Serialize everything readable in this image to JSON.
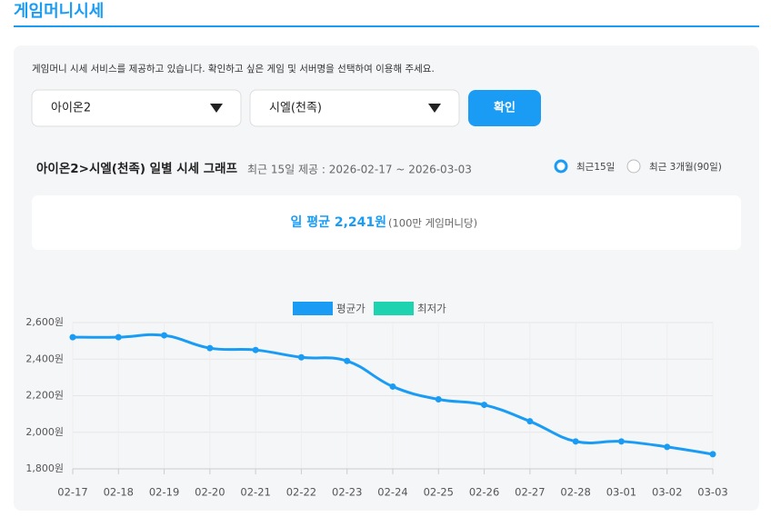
{
  "header": {
    "title": "게임머니시세"
  },
  "form": {
    "description": "게임머니 시세 서비스를 제공하고 있습니다. 확인하고 싶은 게임 및 서버명을 선택하여 이용해 주세요.",
    "game_select": "아이온2",
    "server_select": "시엘(천족)",
    "button": "확인"
  },
  "graph": {
    "title": "아이온2>시엘(천족) 일별 시세 그래프",
    "period": "최근 15일 제공 : 2026-02-17 ~ 2026-03-03",
    "options": [
      "최근15일",
      "최근 3개월(90일)"
    ]
  },
  "summary": {
    "average": "일 평균 2,241원",
    "unit": "(100만 게임머니당)"
  },
  "chart_data": {
    "type": "line",
    "categories": [
      "02-17",
      "02-18",
      "02-19",
      "02-20",
      "02-21",
      "02-22",
      "02-23",
      "02-24",
      "02-25",
      "02-26",
      "02-27",
      "02-28",
      "03-01",
      "03-02",
      "03-03"
    ],
    "series": [
      {
        "name": "평균가",
        "color": "#1a9cf5",
        "values": [
          2520,
          2520,
          2530,
          2460,
          2450,
          2410,
          2390,
          2250,
          2180,
          2150,
          2060,
          1950,
          1950,
          1920,
          1880
        ]
      },
      {
        "name": "최저가",
        "color": "#1dd3b0",
        "values": [
          null,
          null,
          null,
          null,
          null,
          null,
          null,
          null,
          null,
          null,
          null,
          null,
          null,
          null,
          null
        ]
      }
    ],
    "ylim": [
      1800,
      2600
    ],
    "yticks": [
      {
        "value": 1800,
        "label": "1,800원"
      },
      {
        "value": 2000,
        "label": "2,000원"
      },
      {
        "value": 2200,
        "label": "2,200원"
      },
      {
        "value": 2400,
        "label": "2,400원"
      },
      {
        "value": 2600,
        "label": "2,600원"
      }
    ],
    "grid": true,
    "legend": "top"
  }
}
